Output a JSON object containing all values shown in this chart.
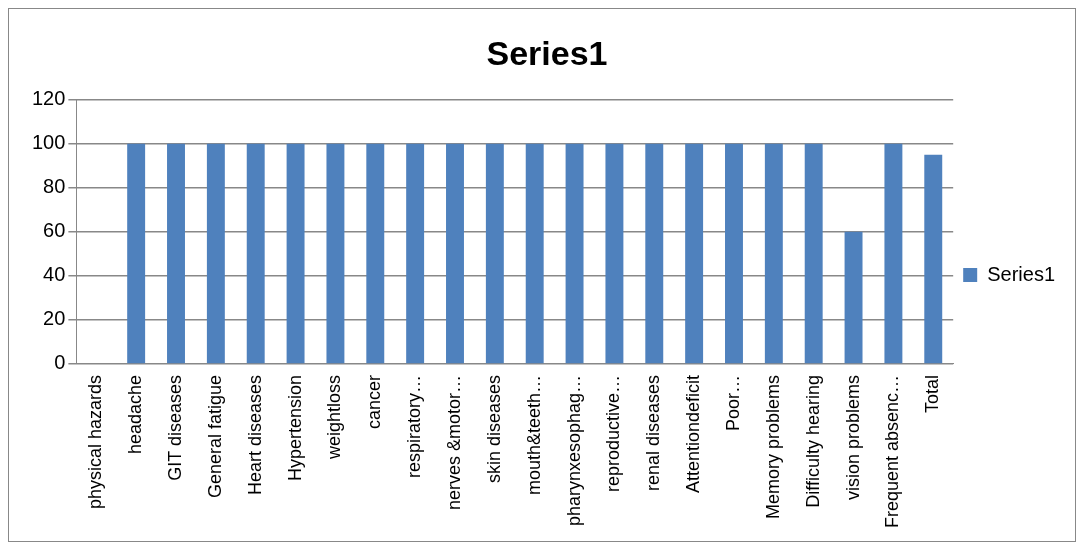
{
  "chart_data": {
    "type": "bar",
    "title": "Series1",
    "categories": [
      "physical hazards",
      "headache",
      "GIT diseases",
      "General fatigue",
      "Heart diseases",
      "Hypertension",
      "weightloss",
      "cancer",
      "respiratory…",
      "nerves &motor…",
      "skin diseases",
      "mouth&teeth…",
      "pharynxesophag…",
      "reproductive…",
      "renal diseases",
      "Attentiondeficit",
      "Poor…",
      "Memory problems",
      "Difficulty hearing",
      "vision problems",
      "Frequent absenc…",
      "Total"
    ],
    "series": [
      {
        "name": "Series1",
        "color": "#4f81bd",
        "values": [
          null,
          100,
          100,
          100,
          100,
          100,
          100,
          100,
          100,
          100,
          100,
          100,
          100,
          100,
          100,
          100,
          100,
          100,
          100,
          60,
          100,
          95
        ]
      }
    ],
    "ylim": [
      0,
      120
    ],
    "yticks": [
      0,
      20,
      40,
      60,
      80,
      100,
      120
    ],
    "grid": "y",
    "legend": "right"
  }
}
